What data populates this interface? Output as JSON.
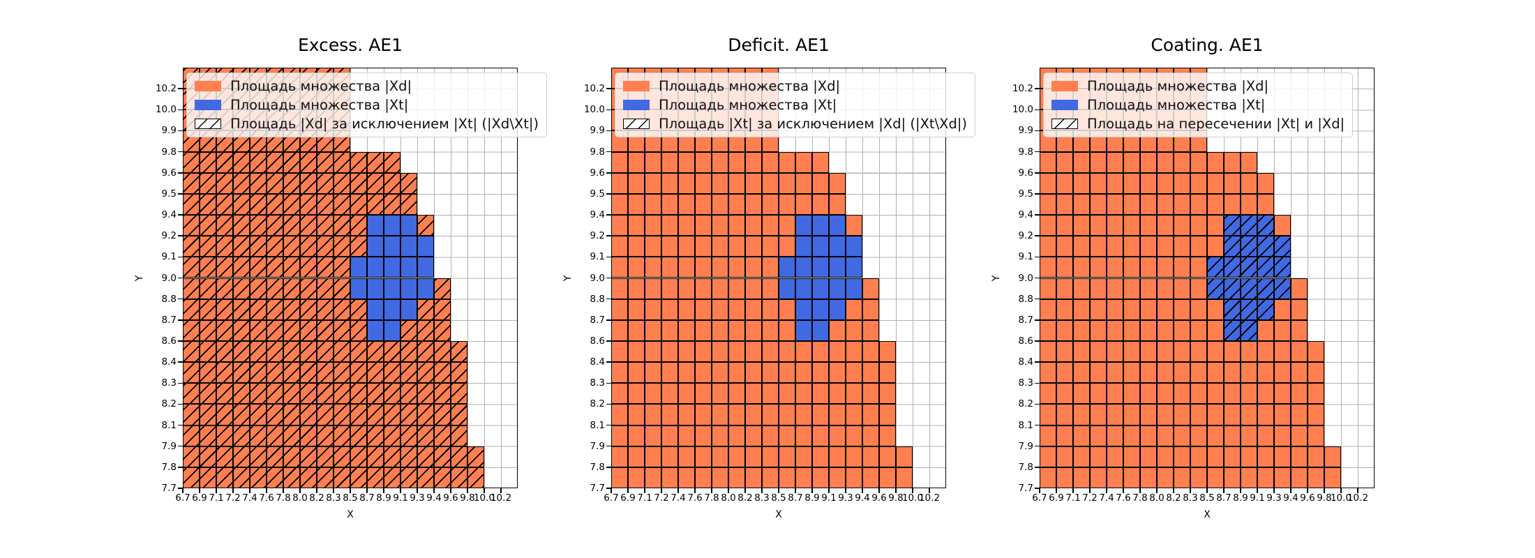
{
  "colors": {
    "xd_orange": "#FF7F50",
    "xt_blue": "#4169E1",
    "grid_gray": "#b0b0b0",
    "cell_edge": "#000000",
    "legend_border": "#cccccc",
    "background": "#ffffff"
  },
  "axis": {
    "xlabel": "X",
    "ylabel": "Y"
  },
  "plots": [
    {
      "title": "Excess. AE1",
      "hatch": "O",
      "legend": [
        {
          "swatch": "xd",
          "label": "Площадь множества |Xd|"
        },
        {
          "swatch": "xt",
          "label": "Площадь множества  |Xt|"
        },
        {
          "swatch": "diff",
          "label": "Площадь |Xd| за исключением |Xt| (|Xd\\Xt|)"
        }
      ]
    },
    {
      "title": "Deficit. AE1",
      "hatch": "none",
      "legend": [
        {
          "swatch": "xd",
          "label": "Площадь множества |Xd|"
        },
        {
          "swatch": "xt",
          "label": "Площадь множества  |Xt|"
        },
        {
          "swatch": "diff",
          "label": "Площадь |Xt| за исключением |Xd| (|Xt\\Xd|)"
        }
      ]
    },
    {
      "title": "Coating. AE1",
      "hatch": "B",
      "legend": [
        {
          "swatch": "xd",
          "label": "Площадь множества |Xd|"
        },
        {
          "swatch": "xt",
          "label": "Площадь множества  |Xt|"
        },
        {
          "swatch": "diff",
          "label": "Площадь на пересечении |Xt| и |Xd|"
        }
      ]
    }
  ],
  "chart_data": {
    "type": "heatmap",
    "shared": {
      "xlabel": "X",
      "ylabel": "Y",
      "x_tick_labels": [
        "6.7",
        "6.9",
        "7.1",
        "7.2",
        "7.4",
        "7.6",
        "7.8",
        "8.0",
        "8.2",
        "8.3",
        "8.5",
        "8.7",
        "8.9",
        "9.1",
        "9.3",
        "9.4",
        "9.6",
        "9.8",
        "10.0",
        "10.2"
      ],
      "y_tick_labels_top_to_bottom": [
        "10.2",
        "10.0",
        "9.9",
        "9.8",
        "9.6",
        "9.5",
        "9.4",
        "9.2",
        "9.1",
        "9.0",
        "8.8",
        "8.7",
        "8.6",
        "8.4",
        "8.3",
        "8.2",
        "8.1",
        "7.9",
        "7.8",
        "7.7"
      ],
      "cell_legend": {
        "O": "set |Xd| (orange)",
        "B": "set |Xt| (blue)",
        ".": "empty"
      },
      "grid_rows_top_to_bottom": [
        "OOOOOOOOOO..........",
        "OOOOOOOOOO..........",
        "OOOOOOOOOO..........",
        "OOOOOOOOOO..........",
        "OOOOOOOOOOOOO.......",
        "OOOOOOOOOOOOOO......",
        "OOOOOOOOOOOOOO......",
        "OOOOOOOOOOOBBBO.....",
        "OOOOOOOOOOOBBBB.....",
        "OOOOOOOOOOBBBBB.....",
        "OOOOOOOOOOBBBBBO....",
        "OOOOOOOOOOOBBBOO....",
        "OOOOOOOOOOOBBOOO....",
        "OOOOOOOOOOOOOOOOO...",
        "OOOOOOOOOOOOOOOOO...",
        "OOOOOOOOOOOOOOOOO...",
        "OOOOOOOOOOOOOOOOO...",
        "OOOOOOOOOOOOOOOOO...",
        "OOOOOOOOOOOOOOOOOO..",
        "OOOOOOOOOOOOOOOOOO.."
      ],
      "grid_on": true,
      "legend_position": "upper left"
    },
    "panels": [
      {
        "title": "Excess. AE1",
        "hatched_cells": "O",
        "hatch_meaning": "Площадь |Xd| за исключением |Xt| (|Xd\\Xt|)"
      },
      {
        "title": "Deficit. AE1",
        "hatched_cells": "none",
        "hatch_meaning": "Площадь |Xt| за исключением |Xd| (|Xt\\Xd|)"
      },
      {
        "title": "Coating. AE1",
        "hatched_cells": "B",
        "hatch_meaning": "Площадь на пересечении |Xt| и |Xd|"
      }
    ]
  }
}
